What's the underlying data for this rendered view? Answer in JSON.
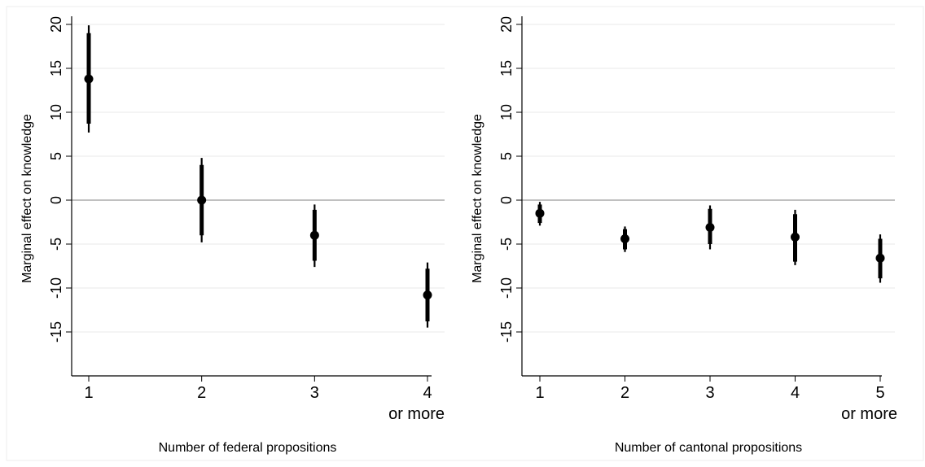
{
  "chart_data": [
    {
      "type": "scatter",
      "xlabel": "Number of federal propositions",
      "ylabel": "Marginal effect on knowledge",
      "ylim": [
        -20,
        20
      ],
      "y_ticks": [
        20,
        15,
        10,
        5,
        0,
        -5,
        -10,
        -15
      ],
      "y_tick_labels": [
        "20",
        "15",
        "10",
        "5",
        "0",
        "-5",
        "-10",
        "-15"
      ],
      "reference_line": 0,
      "x_tick_labels": [
        [
          "1"
        ],
        [
          "2"
        ],
        [
          "3"
        ],
        [
          "4",
          "or more"
        ]
      ],
      "points": [
        {
          "x": 1,
          "y": 13.8,
          "ci90": [
            8.7,
            19.0
          ],
          "ci95": [
            7.7,
            19.9
          ]
        },
        {
          "x": 2,
          "y": 0.0,
          "ci90": [
            -4.0,
            4.0
          ],
          "ci95": [
            -4.8,
            4.8
          ]
        },
        {
          "x": 3,
          "y": -4.0,
          "ci90": [
            -6.9,
            -1.1
          ],
          "ci95": [
            -7.6,
            -0.5
          ]
        },
        {
          "x": 4,
          "y": -10.8,
          "ci90": [
            -13.8,
            -7.8
          ],
          "ci95": [
            -14.5,
            -7.1
          ]
        }
      ]
    },
    {
      "type": "scatter",
      "xlabel": "Number of cantonal propositions",
      "ylabel": "Marginal effect on knowledge",
      "ylim": [
        -20,
        20
      ],
      "y_ticks": [
        20,
        15,
        10,
        5,
        0,
        -5,
        -10,
        -15
      ],
      "y_tick_labels": [
        "20",
        "15",
        "10",
        "5",
        "0",
        "-5",
        "-10",
        "-15"
      ],
      "reference_line": 0,
      "x_tick_labels": [
        [
          "1"
        ],
        [
          "2"
        ],
        [
          "3"
        ],
        [
          "4"
        ],
        [
          "5",
          "or more"
        ]
      ],
      "points": [
        {
          "x": 1,
          "y": -1.5,
          "ci90": [
            -2.6,
            -0.5
          ],
          "ci95": [
            -2.9,
            -0.2
          ]
        },
        {
          "x": 2,
          "y": -4.4,
          "ci90": [
            -5.6,
            -3.3
          ],
          "ci95": [
            -5.9,
            -3.0
          ]
        },
        {
          "x": 3,
          "y": -3.1,
          "ci90": [
            -5.0,
            -1.0
          ],
          "ci95": [
            -5.6,
            -0.6
          ]
        },
        {
          "x": 4,
          "y": -4.2,
          "ci90": [
            -7.0,
            -1.6
          ],
          "ci95": [
            -7.4,
            -1.1
          ]
        },
        {
          "x": 5,
          "y": -6.6,
          "ci90": [
            -8.9,
            -4.4
          ],
          "ci95": [
            -9.4,
            -3.9
          ]
        }
      ]
    }
  ]
}
